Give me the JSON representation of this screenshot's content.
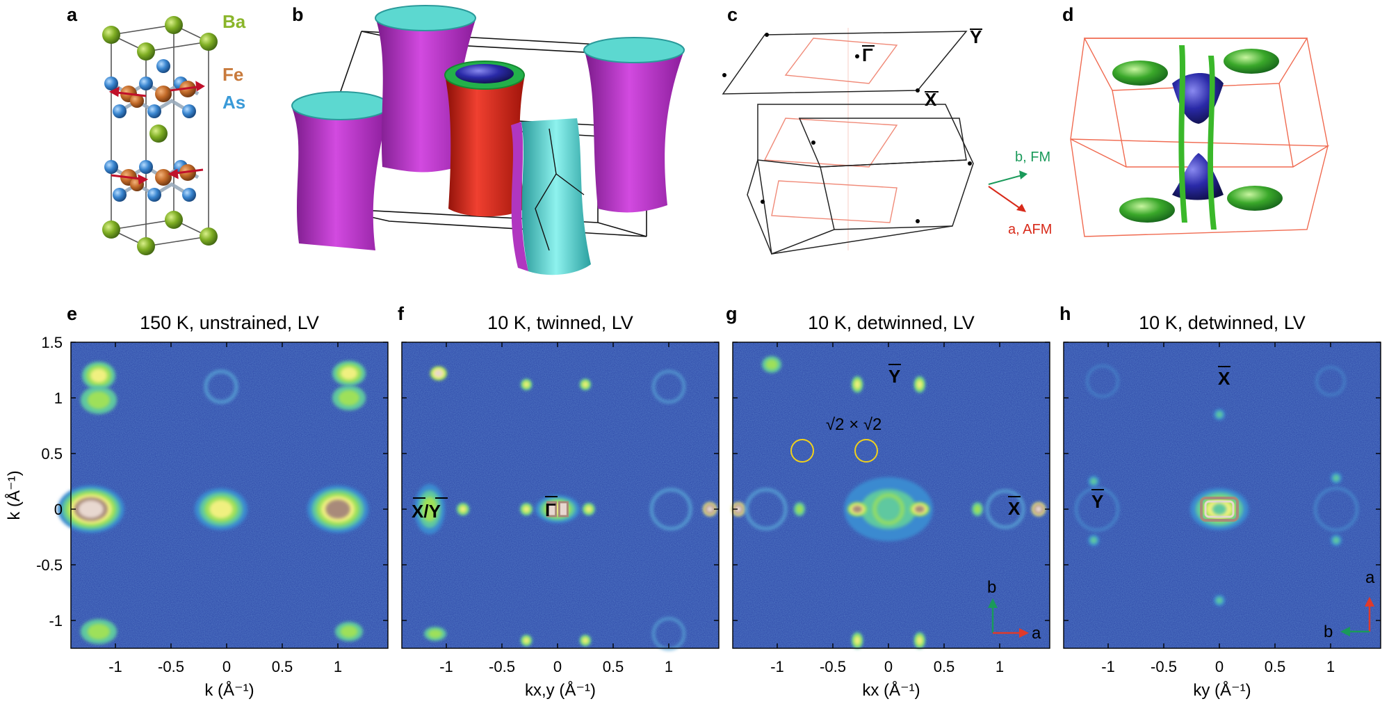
{
  "figure": {
    "panel_labels": [
      "a",
      "b",
      "c",
      "d",
      "e",
      "f",
      "g",
      "h"
    ],
    "panel_a": {
      "elements": [
        {
          "name": "Ba",
          "color": "#8ab52a"
        },
        {
          "name": "Fe",
          "color": "#c87a3c"
        },
        {
          "name": "As",
          "color": "#3a9ad8"
        }
      ]
    },
    "panel_c": {
      "points": [
        "Γ",
        "Y",
        "X"
      ],
      "directions": [
        {
          "label": "b, FM",
          "color": "#1a9a5a"
        },
        {
          "label": "a, AFM",
          "color": "#d82a1a"
        }
      ]
    },
    "maps": [
      {
        "title": "150 K, unstrained, LV",
        "xlabel": "k (Å⁻¹)",
        "xticks": [
          "-1",
          "-0.5",
          "0",
          "0.5",
          "1"
        ],
        "points": []
      },
      {
        "title": "10 K, twinned, LV",
        "xlabel": "kx,y (Å⁻¹)",
        "xticks": [
          "-1",
          "-0.5",
          "0",
          "0.5",
          "1"
        ],
        "points": [
          {
            "label": "X/Y"
          },
          {
            "label": "Γ"
          }
        ]
      },
      {
        "title": "10 K, detwinned, LV",
        "xlabel": "kx (Å⁻¹)",
        "xticks": [
          "-1",
          "-0.5",
          "0",
          "0.5",
          "1"
        ],
        "points": [
          {
            "label": "Y"
          },
          {
            "label": "X"
          }
        ],
        "annotation": "√2 × √2",
        "axes": [
          {
            "label": "b",
            "color": "#1a9a5a"
          },
          {
            "label": "a",
            "color": "#e03a2a"
          }
        ]
      },
      {
        "title": "10 K, detwinned, LV",
        "xlabel": "ky (Å⁻¹)",
        "xticks": [
          "-1",
          "-0.5",
          "0",
          "0.5",
          "1"
        ],
        "points": [
          {
            "label": "X"
          },
          {
            "label": "Y"
          }
        ],
        "axes": [
          {
            "label": "a",
            "color": "#e03a2a"
          },
          {
            "label": "b",
            "color": "#1a9a5a"
          }
        ]
      }
    ],
    "ylabel": "k (Å⁻¹)",
    "yticks": [
      "1.5",
      "1",
      "0.5",
      "0",
      "-0.5",
      "-1"
    ]
  }
}
